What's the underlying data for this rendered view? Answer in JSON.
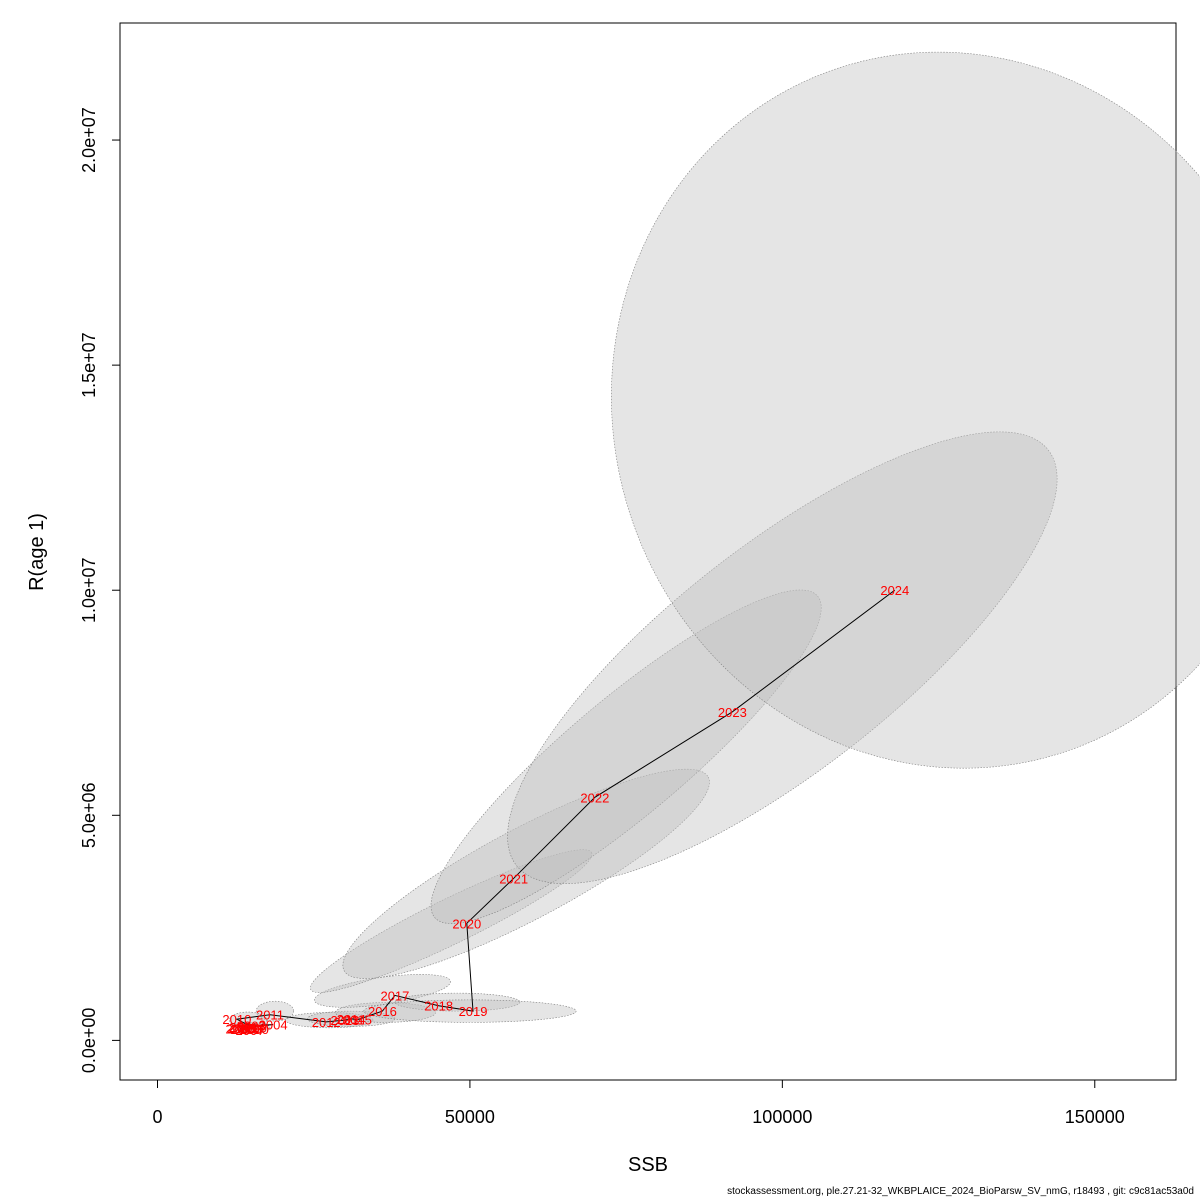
{
  "chart_data": {
    "type": "scatter",
    "xlabel": "SSB",
    "ylabel": "R(age 1)",
    "xlim": [
      -6000,
      163000
    ],
    "ylim": [
      -880000,
      22600000
    ],
    "x_ticks": [
      0,
      50000,
      100000,
      150000
    ],
    "x_tick_labels": [
      "0",
      "50000",
      "100000",
      "150000"
    ],
    "y_ticks": [
      0,
      5000000,
      10000000,
      15000000,
      20000000
    ],
    "y_tick_labels": [
      "0.0e+00",
      "5.0e+06",
      "1.0e+07",
      "1.5e+07",
      "2.0e+07"
    ],
    "grid": false,
    "colors": {
      "point_label": "#ff0000",
      "line": "#000000",
      "ellipse_fill": "#bebebe",
      "ellipse_stroke": "#7f7f7f"
    },
    "points": [
      {
        "year": "2000",
        "ssb": 15500,
        "r": 250000
      },
      {
        "year": "2001",
        "ssb": 13800,
        "r": 300000
      },
      {
        "year": "2002",
        "ssb": 14500,
        "r": 260000
      },
      {
        "year": "2003",
        "ssb": 15000,
        "r": 330000
      },
      {
        "year": "2004",
        "ssb": 18500,
        "r": 350000
      },
      {
        "year": "2005",
        "ssb": 13500,
        "r": 280000
      },
      {
        "year": "2006",
        "ssb": 14000,
        "r": 250000
      },
      {
        "year": "2007",
        "ssb": 14800,
        "r": 230000
      },
      {
        "year": "2008",
        "ssb": 13200,
        "r": 260000
      },
      {
        "year": "2009",
        "ssb": 15200,
        "r": 290000
      },
      {
        "year": "2010",
        "ssb": 12700,
        "r": 470000
      },
      {
        "year": "2011",
        "ssb": 18000,
        "r": 570000
      },
      {
        "year": "2012",
        "ssb": 27000,
        "r": 410000
      },
      {
        "year": "2013",
        "ssb": 30000,
        "r": 450000
      },
      {
        "year": "2014",
        "ssb": 31000,
        "r": 480000
      },
      {
        "year": "2015",
        "ssb": 32000,
        "r": 460000
      },
      {
        "year": "2016",
        "ssb": 36000,
        "r": 650000
      },
      {
        "year": "2017",
        "ssb": 38000,
        "r": 1000000
      },
      {
        "year": "2018",
        "ssb": 45000,
        "r": 770000
      },
      {
        "year": "2019",
        "ssb": 50500,
        "r": 650000
      },
      {
        "year": "2020",
        "ssb": 49500,
        "r": 2600000
      },
      {
        "year": "2021",
        "ssb": 57000,
        "r": 3600000
      },
      {
        "year": "2022",
        "ssb": 70000,
        "r": 5400000
      },
      {
        "year": "2023",
        "ssb": 92000,
        "r": 7300000
      },
      {
        "year": "2024",
        "ssb": 118000,
        "r": 10000000
      }
    ],
    "ellipses": [
      {
        "cx": 15500,
        "cy": 280000,
        "rx": 2500,
        "ry": 120000,
        "angle_deg": 0
      },
      {
        "cx": 14000,
        "cy": 300000,
        "rx": 2200,
        "ry": 110000,
        "angle_deg": 0
      },
      {
        "cx": 18800,
        "cy": 650000,
        "rx": 3000,
        "ry": 220000,
        "angle_deg": 0
      },
      {
        "cx": 14500,
        "cy": 450000,
        "rx": 3000,
        "ry": 180000,
        "angle_deg": 0
      },
      {
        "cx": 27500,
        "cy": 450000,
        "rx": 7000,
        "ry": 170000,
        "angle_deg": 0
      },
      {
        "cx": 31000,
        "cy": 480000,
        "rx": 7000,
        "ry": 170000,
        "angle_deg": 0
      },
      {
        "cx": 36500,
        "cy": 620000,
        "rx": 8000,
        "ry": 220000,
        "angle_deg": 0
      },
      {
        "cx": 36000,
        "cy": 1100000,
        "rx": 11000,
        "ry": 300000,
        "angle_deg": 8
      },
      {
        "cx": 48000,
        "cy": 850000,
        "rx": 10000,
        "ry": 200000,
        "angle_deg": 0
      },
      {
        "cx": 50000,
        "cy": 650000,
        "rx": 17000,
        "ry": 250000,
        "angle_deg": 0
      },
      {
        "cx": 47000,
        "cy": 2650000,
        "rx": 25000,
        "ry": 500000,
        "angle_deg": 26
      },
      {
        "cx": 59000,
        "cy": 3700000,
        "rx": 33000,
        "ry": 1000000,
        "angle_deg": 28
      },
      {
        "cx": 75000,
        "cy": 6300000,
        "rx": 40000,
        "ry": 1300000,
        "angle_deg": 40
      },
      {
        "cx": 100000,
        "cy": 8500000,
        "rx": 54000,
        "ry": 2500000,
        "angle_deg": 38
      },
      {
        "cx": 127000,
        "cy": 14000000,
        "rx": 54000,
        "ry": 8000000,
        "angle_deg": 18
      }
    ]
  },
  "footer": "stockassessment.org, ple.27.21-32_WKBPLAICE_2024_BioParsw_SV_nmG, r18493 , git: c9c81ac53a0d"
}
